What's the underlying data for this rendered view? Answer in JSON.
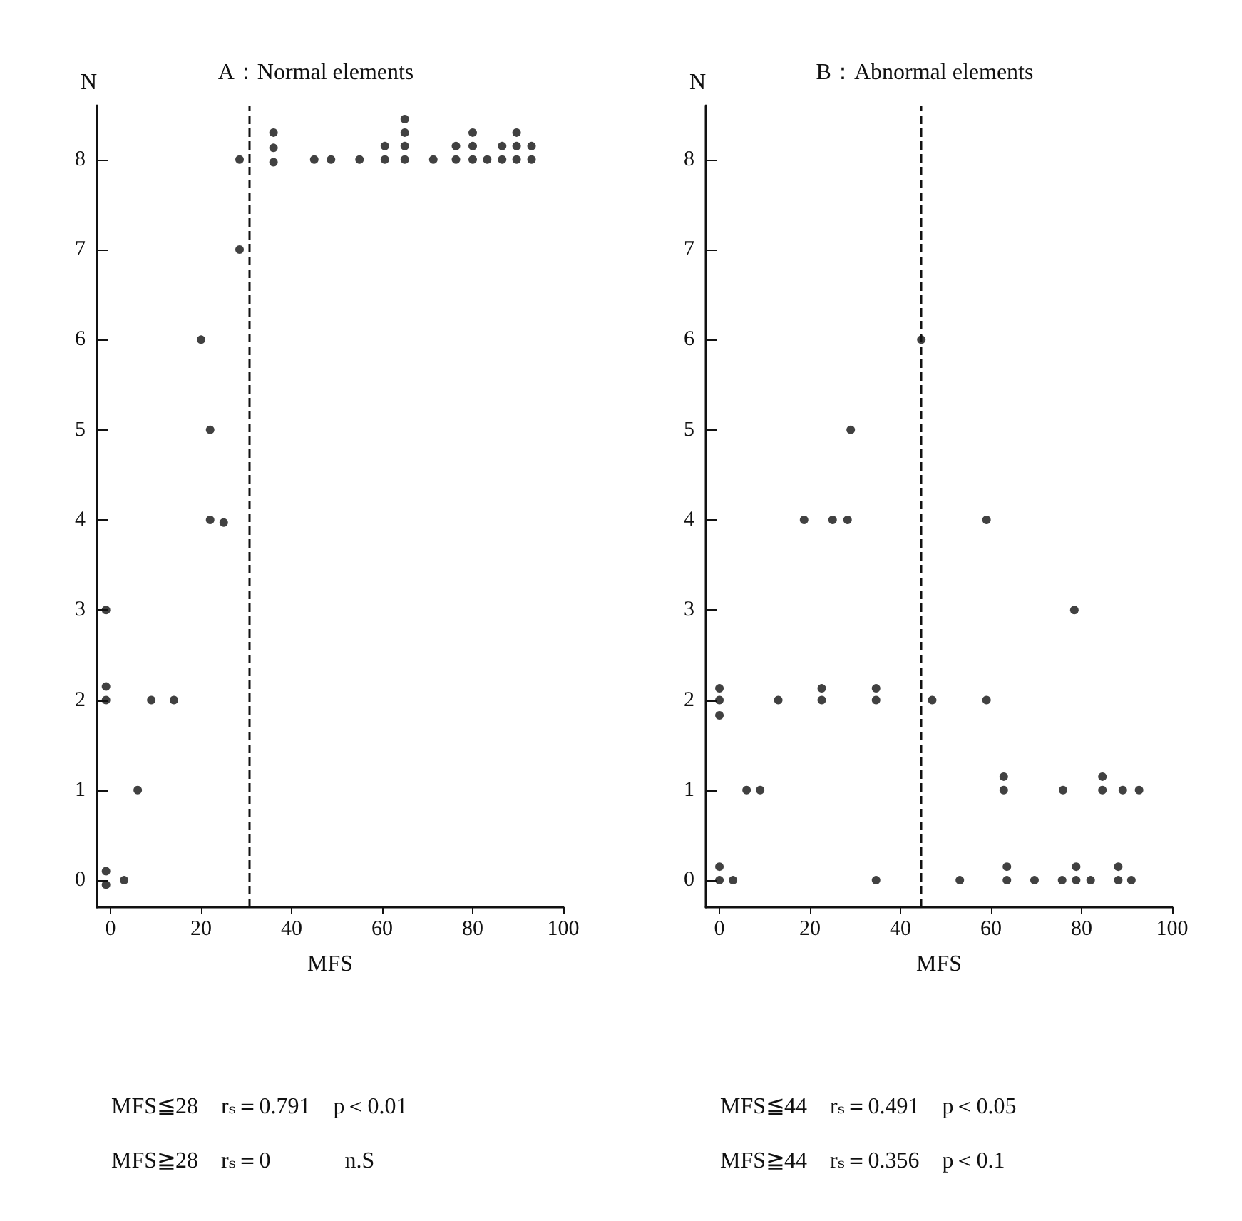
{
  "chart_data": [
    {
      "type": "scatter",
      "title": "A：Normal elements",
      "xlabel": "MFS",
      "ylabel": "N",
      "xlim": [
        -3,
        100
      ],
      "xticks": [
        0,
        20,
        40,
        60,
        80,
        100
      ],
      "ylim": [
        -0.3,
        8.6
      ],
      "yticks": [
        0,
        1,
        2,
        3,
        4,
        5,
        6,
        7,
        8
      ],
      "grid": false,
      "marker": "circle",
      "series": [
        {
          "color": "#111111",
          "x": [
            -1,
            -1,
            -1,
            -1,
            -1,
            3,
            6,
            9,
            14,
            22,
            25,
            22,
            20,
            28.5,
            28.5,
            36,
            36,
            36,
            45,
            48.7,
            55,
            60.6,
            60.6,
            65,
            65,
            65,
            65,
            71.3,
            76.3,
            76.3,
            80,
            80,
            80,
            83.2,
            86.5,
            86.5,
            89.7,
            89.7,
            89.7,
            93,
            93
          ],
          "values": [
            3,
            2.15,
            2,
            0.1,
            -0.05,
            0,
            1,
            2,
            2,
            4,
            3.97,
            5,
            6,
            7,
            8,
            7.97,
            8.13,
            8.3,
            8,
            8,
            8,
            8,
            8.15,
            8,
            8.15,
            8.3,
            8.45,
            8,
            8,
            8.15,
            8,
            8.15,
            8.3,
            8,
            8,
            8.15,
            8,
            8.15,
            8.3,
            8,
            8.15
          ]
        }
      ],
      "ref_lines": [
        {
          "axis": "x",
          "value": 30.5,
          "label": null,
          "color": "#111111",
          "line_style": "dashed"
        }
      ],
      "annotations": [
        "MFS≦28　rₛ＝0.791　p＜0.01",
        "MFS≧28　rₛ＝0　　　 n.S"
      ]
    },
    {
      "type": "scatter",
      "title": "B：Abnormal elements",
      "xlabel": "MFS",
      "ylabel": "N",
      "xlim": [
        -3,
        100
      ],
      "xticks": [
        0,
        20,
        40,
        60,
        80,
        100
      ],
      "ylim": [
        -0.3,
        8.6
      ],
      "yticks": [
        0,
        1,
        2,
        3,
        4,
        5,
        6,
        7,
        8
      ],
      "grid": false,
      "marker": "circle",
      "series": [
        {
          "color": "#111111",
          "x": [
            0,
            0,
            0,
            0,
            0,
            3,
            6,
            9,
            13,
            22.6,
            22.6,
            34.6,
            34.6,
            34.6,
            47,
            18.7,
            25,
            28.3,
            29,
            44.6,
            59,
            59,
            78.4,
            62.8,
            62.8,
            75.9,
            84.6,
            84.6,
            89.1,
            92.7,
            53.1,
            63.5,
            63.5,
            69.6,
            75.7,
            78.8,
            78.8,
            82,
            88.1,
            88.1,
            91
          ],
          "values": [
            2.13,
            2,
            1.83,
            0.15,
            0,
            0,
            1,
            1,
            2,
            2.13,
            2,
            2.13,
            2,
            0,
            2,
            4,
            4,
            4,
            5,
            6,
            4,
            2,
            3,
            1,
            1.15,
            1,
            1,
            1.15,
            1,
            1,
            0,
            0,
            0.15,
            0,
            0,
            0,
            0.15,
            0,
            0,
            0.15,
            0
          ]
        }
      ],
      "ref_lines": [
        {
          "axis": "x",
          "value": 44.5,
          "label": null,
          "color": "#111111",
          "line_style": "dashed"
        }
      ],
      "annotations": [
        "MFS≦44　rₛ＝0.491　p＜0.05",
        "MFS≧44　rₛ＝0.356　p＜0.1"
      ]
    }
  ]
}
